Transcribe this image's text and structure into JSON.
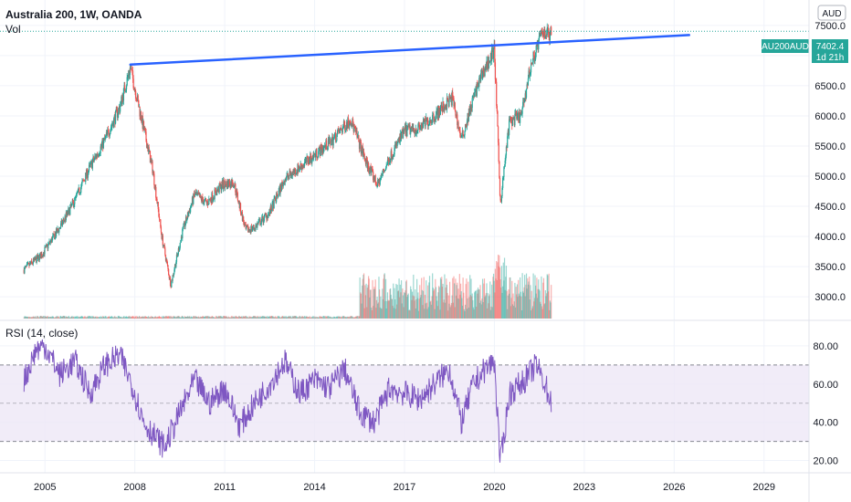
{
  "header": {
    "title": "Australia 200, 1W, OANDA",
    "vol_label": "Vol",
    "currency": "AUD"
  },
  "price_tag": {
    "symbol": "AU200AUD",
    "price": "7402.4",
    "countdown": "1d 21h"
  },
  "rsi_pane": {
    "title": "RSI (14, close)"
  },
  "colors": {
    "up": "#26a69a",
    "down": "#ef5350",
    "trendline": "#2962ff",
    "rsi_line": "#7e57c2",
    "rsi_band": "#ede7f6",
    "tag": "#26a69a"
  },
  "chart_data": [
    {
      "type": "candlestick",
      "title": "Australia 200, 1W, OANDA",
      "x_ticks": [
        "2005",
        "2008",
        "2011",
        "2014",
        "2017",
        "2020",
        "2023",
        "2026",
        "2029"
      ],
      "y_ticks": [
        "3000.0",
        "3500.0",
        "4000.0",
        "4500.0",
        "5000.0",
        "5500.0",
        "6000.0",
        "6500.0",
        "7000.0",
        "7500.0"
      ],
      "ylim": [
        2700,
        7800
      ],
      "xlim": [
        2003.5,
        2030.5
      ],
      "last_price": 7402.4,
      "price_path": [
        [
          2004.3,
          3450
        ],
        [
          2004.9,
          3700
        ],
        [
          2005.5,
          4150
        ],
        [
          2006.0,
          4600
        ],
        [
          2006.5,
          5150
        ],
        [
          2007.0,
          5600
        ],
        [
          2007.5,
          6150
        ],
        [
          2007.85,
          6800
        ],
        [
          2008.2,
          6000
        ],
        [
          2008.6,
          5100
        ],
        [
          2008.9,
          4000
        ],
        [
          2009.2,
          3200
        ],
        [
          2009.6,
          4100
        ],
        [
          2010.0,
          4700
        ],
        [
          2010.4,
          4550
        ],
        [
          2010.9,
          4850
        ],
        [
          2011.3,
          4900
        ],
        [
          2011.7,
          4100
        ],
        [
          2012.0,
          4150
        ],
        [
          2012.5,
          4400
        ],
        [
          2013.0,
          4950
        ],
        [
          2013.5,
          5150
        ],
        [
          2014.0,
          5350
        ],
        [
          2014.6,
          5600
        ],
        [
          2015.2,
          5950
        ],
        [
          2015.7,
          5250
        ],
        [
          2016.1,
          4850
        ],
        [
          2016.5,
          5300
        ],
        [
          2017.0,
          5750
        ],
        [
          2017.5,
          5800
        ],
        [
          2018.0,
          6000
        ],
        [
          2018.6,
          6300
        ],
        [
          2018.9,
          5600
        ],
        [
          2019.3,
          6300
        ],
        [
          2019.6,
          6700
        ],
        [
          2020.0,
          7100
        ],
        [
          2020.2,
          4550
        ],
        [
          2020.5,
          5900
        ],
        [
          2020.9,
          6000
        ],
        [
          2021.2,
          6800
        ],
        [
          2021.6,
          7400
        ],
        [
          2021.9,
          7350
        ]
      ],
      "volume_note": "Vol"
    },
    {
      "type": "line",
      "title": "RSI (14, close)",
      "y_ticks": [
        "20.00",
        "40.00",
        "60.00",
        "80.00"
      ],
      "ylim": [
        15,
        90
      ],
      "bands": [
        30,
        50,
        70
      ],
      "rsi_path": [
        [
          2004.3,
          62
        ],
        [
          2004.7,
          78
        ],
        [
          2005.0,
          80
        ],
        [
          2005.5,
          65
        ],
        [
          2006.0,
          72
        ],
        [
          2006.5,
          55
        ],
        [
          2007.0,
          70
        ],
        [
          2007.5,
          75
        ],
        [
          2007.9,
          60
        ],
        [
          2008.3,
          40
        ],
        [
          2008.7,
          32
        ],
        [
          2009.0,
          27
        ],
        [
          2009.5,
          45
        ],
        [
          2010.0,
          62
        ],
        [
          2010.5,
          50
        ],
        [
          2011.0,
          58
        ],
        [
          2011.5,
          38
        ],
        [
          2012.0,
          50
        ],
        [
          2012.5,
          60
        ],
        [
          2013.0,
          72
        ],
        [
          2013.5,
          55
        ],
        [
          2014.0,
          62
        ],
        [
          2014.5,
          58
        ],
        [
          2015.0,
          68
        ],
        [
          2015.5,
          45
        ],
        [
          2016.0,
          40
        ],
        [
          2016.5,
          58
        ],
        [
          2017.0,
          55
        ],
        [
          2017.5,
          52
        ],
        [
          2018.0,
          60
        ],
        [
          2018.5,
          68
        ],
        [
          2018.9,
          40
        ],
        [
          2019.3,
          60
        ],
        [
          2019.7,
          68
        ],
        [
          2020.0,
          72
        ],
        [
          2020.2,
          18
        ],
        [
          2020.5,
          55
        ],
        [
          2021.0,
          62
        ],
        [
          2021.4,
          70
        ],
        [
          2021.7,
          60
        ],
        [
          2021.9,
          50
        ]
      ]
    }
  ]
}
